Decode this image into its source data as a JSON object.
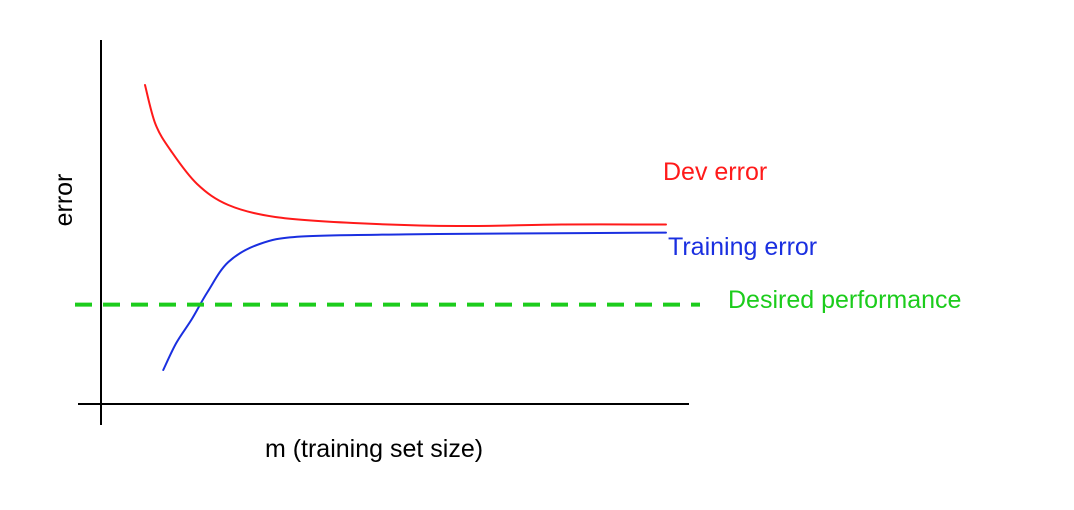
{
  "chart_data": {
    "type": "line",
    "xlabel": "m (training set size)",
    "ylabel": "error",
    "series": [
      {
        "name": "Dev error",
        "color": "#ff1a1a",
        "points": [
          [
            0.0,
            0.95
          ],
          [
            0.02,
            0.82
          ],
          [
            0.05,
            0.73
          ],
          [
            0.1,
            0.62
          ],
          [
            0.16,
            0.55
          ],
          [
            0.25,
            0.51
          ],
          [
            0.4,
            0.49
          ],
          [
            0.6,
            0.48
          ],
          [
            0.8,
            0.485
          ],
          [
            1.0,
            0.485
          ]
        ]
      },
      {
        "name": "Training error",
        "color": "#1a2fe0",
        "points": [
          [
            0.035,
            0.0
          ],
          [
            0.06,
            0.09
          ],
          [
            0.09,
            0.17
          ],
          [
            0.12,
            0.26
          ],
          [
            0.16,
            0.36
          ],
          [
            0.22,
            0.42
          ],
          [
            0.3,
            0.445
          ],
          [
            0.5,
            0.452
          ],
          [
            0.7,
            0.455
          ],
          [
            1.0,
            0.458
          ]
        ]
      }
    ],
    "reference_lines": [
      {
        "name": "Desired performance",
        "color": "#1ccc1c",
        "y": 0.218,
        "style": "dashed"
      }
    ],
    "axes": {
      "show_ticks": false,
      "show_grid": false
    }
  }
}
